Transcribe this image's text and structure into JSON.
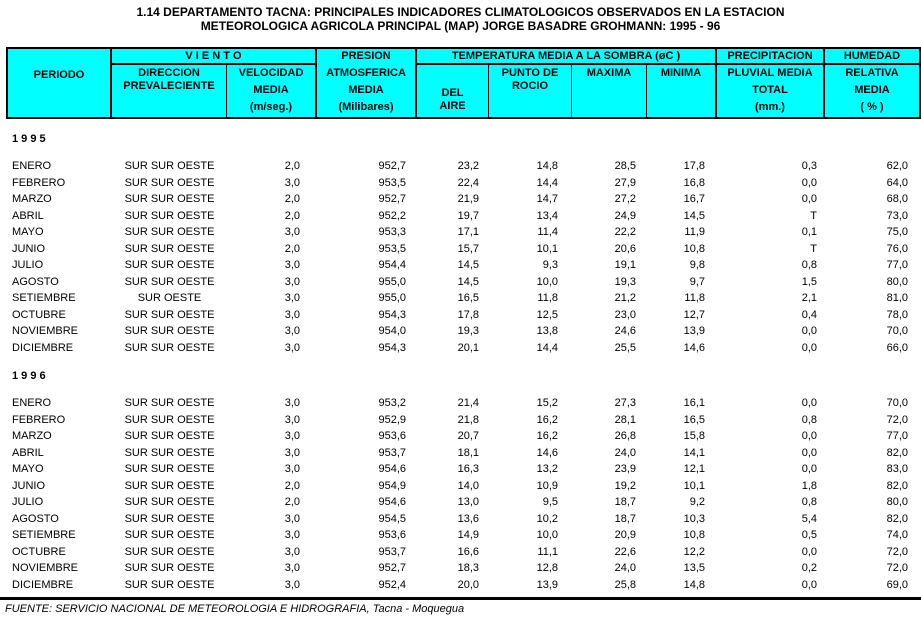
{
  "title": {
    "line1": "1.14  DEPARTAMENTO TACNA: PRINCIPALES INDICADORES CLIMATOLOGICOS OBSERVADOS EN LA ESTACION",
    "line2": "METEOROLOGICA AGRICOLA PRINCIPAL (MAP) JORGE BASADRE GROHMANN: 1995 - 96"
  },
  "colors": {
    "header_background": "#00ffff",
    "border": "#000000",
    "text": "#000000",
    "page_background": "#ffffff"
  },
  "header": {
    "periodo": "PERIODO",
    "viento": "V I E N T O",
    "direccion": [
      "DIRECCION",
      "PREVALECIENTE"
    ],
    "velocidad": [
      "VELOCIDAD",
      "MEDIA",
      "(m/seg.)"
    ],
    "presion": [
      "PRESION",
      "ATMOSFERICA",
      "MEDIA",
      "(Milibares)"
    ],
    "temperatura": "TEMPERATURA  MEDIA A LA SOMBRA  (øC )",
    "del_aire": [
      "DEL",
      "AIRE"
    ],
    "punto_rocio": [
      "PUNTO DE",
      "ROCIO"
    ],
    "maxima": "MAXIMA",
    "minima": "MINIMA",
    "precipitacion": "PRECIPITACION",
    "pluvial": [
      "PLUVIAL   MEDIA",
      "TOTAL",
      "(mm.)"
    ],
    "humedad": "HUMEDAD",
    "relativa": [
      "RELATIVA",
      "MEDIA",
      "( % )"
    ]
  },
  "columns": [
    "PERIODO",
    "DIRECCION PREVALECIENTE",
    "VELOCIDAD MEDIA (m/seg.)",
    "PRESION ATMOSFERICA MEDIA (Milibares)",
    "TEMPERATURA DEL AIRE",
    "PUNTO DE ROCIO",
    "MAXIMA",
    "MINIMA",
    "PRECIPITACION PLUVIAL MEDIA TOTAL (mm.)",
    "HUMEDAD RELATIVA MEDIA ( % )"
  ],
  "sections": [
    {
      "year": "1 9 9 5",
      "rows": [
        [
          "ENERO",
          "SUR SUR OESTE",
          "2,0",
          "952,7",
          "23,2",
          "14,8",
          "28,5",
          "17,8",
          "0,3",
          "62,0"
        ],
        [
          "FEBRERO",
          "SUR SUR OESTE",
          "3,0",
          "953,5",
          "22,4",
          "14,4",
          "27,9",
          "16,8",
          "0,0",
          "64,0"
        ],
        [
          "MARZO",
          "SUR SUR OESTE",
          "2,0",
          "952,7",
          "21,9",
          "14,7",
          "27,2",
          "16,7",
          "0,0",
          "68,0"
        ],
        [
          "ABRIL",
          "SUR SUR OESTE",
          "2,0",
          "952,2",
          "19,7",
          "13,4",
          "24,9",
          "14,5",
          "T",
          "73,0"
        ],
        [
          "MAYO",
          "SUR SUR OESTE",
          "3,0",
          "953,3",
          "17,1",
          "11,4",
          "22,2",
          "11,9",
          "0,1",
          "75,0"
        ],
        [
          "JUNIO",
          "SUR SUR OESTE",
          "2,0",
          "953,5",
          "15,7",
          "10,1",
          "20,6",
          "10,8",
          "T",
          "76,0"
        ],
        [
          "JULIO",
          "SUR SUR OESTE",
          "3,0",
          "954,4",
          "14,5",
          "9,3",
          "19,1",
          "9,8",
          "0,8",
          "77,0"
        ],
        [
          "AGOSTO",
          "SUR SUR OESTE",
          "3,0",
          "955,0",
          "14,5",
          "10,0",
          "19,3",
          "9,7",
          "1,5",
          "80,0"
        ],
        [
          "SETIEMBRE",
          "SUR OESTE",
          "3,0",
          "955,0",
          "16,5",
          "11,8",
          "21,2",
          "11,8",
          "2,1",
          "81,0"
        ],
        [
          "OCTUBRE",
          "SUR SUR OESTE",
          "3,0",
          "954,3",
          "17,8",
          "12,5",
          "23,0",
          "12,7",
          "0,4",
          "78,0"
        ],
        [
          "NOVIEMBRE",
          "SUR SUR OESTE",
          "3,0",
          "954,0",
          "19,3",
          "13,8",
          "24,6",
          "13,9",
          "0,0",
          "70,0"
        ],
        [
          "DICIEMBRE",
          "SUR SUR OESTE",
          "3,0",
          "954,3",
          "20,1",
          "14,4",
          "25,5",
          "14,6",
          "0,0",
          "66,0"
        ]
      ]
    },
    {
      "year": "1 9 9 6",
      "rows": [
        [
          "ENERO",
          "SUR SUR OESTE",
          "3,0",
          "953,2",
          "21,4",
          "15,2",
          "27,3",
          "16,1",
          "0,0",
          "70,0"
        ],
        [
          "FEBRERO",
          "SUR SUR OESTE",
          "3,0",
          "952,9",
          "21,8",
          "16,2",
          "28,1",
          "16,5",
          "0,8",
          "72,0"
        ],
        [
          "MARZO",
          "SUR SUR OESTE",
          "3,0",
          "953,6",
          "20,7",
          "16,2",
          "26,8",
          "15,8",
          "0,0",
          "77,0"
        ],
        [
          "ABRIL",
          "SUR SUR OESTE",
          "3,0",
          "953,7",
          "18,1",
          "14,6",
          "24,0",
          "14,1",
          "0,0",
          "82,0"
        ],
        [
          "MAYO",
          "SUR SUR OESTE",
          "3,0",
          "954,6",
          "16,3",
          "13,2",
          "23,9",
          "12,1",
          "0,0",
          "83,0"
        ],
        [
          "JUNIO",
          "SUR SUR OESTE",
          "2,0",
          "954,9",
          "14,0",
          "10,9",
          "19,2",
          "10,1",
          "1,8",
          "82,0"
        ],
        [
          "JULIO",
          "SUR SUR OESTE",
          "2,0",
          "954,6",
          "13,0",
          "9,5",
          "18,7",
          "9,2",
          "0,8",
          "80,0"
        ],
        [
          "AGOSTO",
          "SUR SUR OESTE",
          "3,0",
          "954,5",
          "13,6",
          "10,2",
          "18,7",
          "10,3",
          "5,4",
          "82,0"
        ],
        [
          "SETIEMBRE",
          "SUR SUR OESTE",
          "3,0",
          "953,6",
          "14,9",
          "10,0",
          "20,9",
          "10,8",
          "0,5",
          "74,0"
        ],
        [
          "OCTUBRE",
          "SUR SUR OESTE",
          "3,0",
          "953,7",
          "16,6",
          "11,1",
          "22,6",
          "12,2",
          "0,0",
          "72,0"
        ],
        [
          "NOVIEMBRE",
          "SUR SUR OESTE",
          "3,0",
          "952,7",
          "18,3",
          "12,8",
          "24,0",
          "13,5",
          "0,2",
          "72,0"
        ],
        [
          "DICIEMBRE",
          "SUR SUR OESTE",
          "3,0",
          "952,4",
          "20,0",
          "13,9",
          "25,8",
          "14,8",
          "0,0",
          "69,0"
        ]
      ]
    }
  ],
  "footer": {
    "text": "FUENTE: SERVICIO NACIONAL DE METEOROLOGIA E HIDROGRAFIA, Tacna - Moquegua"
  }
}
